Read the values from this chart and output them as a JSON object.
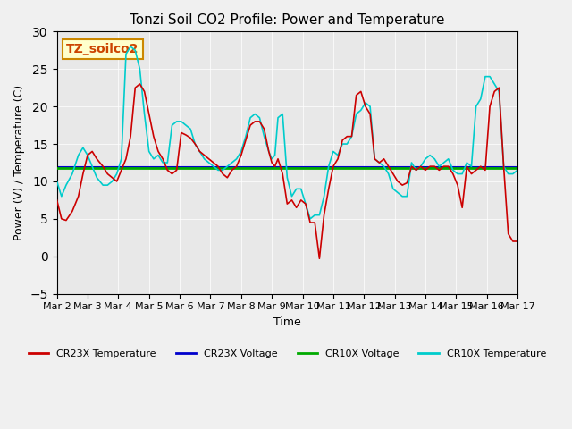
{
  "title": "Tonzi Soil CO2 Profile: Power and Temperature",
  "xlabel": "Time",
  "ylabel": "Power (V) / Temperature (C)",
  "ylim": [
    -5,
    30
  ],
  "xlim": [
    0,
    15
  ],
  "background_color": "#f0f0f0",
  "plot_bg_color": "#e8e8e8",
  "annotation_text": "TZ_soilco2",
  "annotation_bg": "#ffffcc",
  "annotation_border": "#cc8800",
  "yticks": [
    -5,
    0,
    5,
    10,
    15,
    20,
    25,
    30
  ],
  "xtick_labels": [
    "Mar 2",
    "Mar 3",
    "Mar 4",
    "Mar 5",
    "Mar 6",
    "Mar 7",
    "Mar 8",
    "Mar 9",
    "Mar 10",
    "Mar 11",
    "Mar 12",
    "Mar 13",
    "Mar 14",
    "Mar 15",
    "Mar 16",
    "Mar 17"
  ],
  "cr10x_voltage_value": 11.8,
  "cr23x_voltage_value": 11.85,
  "legend_entries": [
    "CR23X Temperature",
    "CR23X Voltage",
    "CR10X Voltage",
    "CR10X Temperature"
  ],
  "legend_colors": [
    "#cc0000",
    "#0000cc",
    "#00aa00",
    "#00cccc"
  ],
  "cr23x_temp_color": "#cc0000",
  "cr10x_temp_color": "#00cccc",
  "cr23x_volt_color": "#0000cc",
  "cr10x_volt_color": "#00aa00",
  "cr23x_temp_x": [
    0,
    0.15,
    0.3,
    0.5,
    0.7,
    0.85,
    1.0,
    1.15,
    1.3,
    1.5,
    1.65,
    1.8,
    1.95,
    2.1,
    2.25,
    2.4,
    2.55,
    2.7,
    2.85,
    3.0,
    3.15,
    3.3,
    3.45,
    3.6,
    3.75,
    3.9,
    4.05,
    4.2,
    4.35,
    4.5,
    4.65,
    4.8,
    4.95,
    5.1,
    5.25,
    5.4,
    5.55,
    5.7,
    5.85,
    6.0,
    6.15,
    6.3,
    6.45,
    6.6,
    6.75,
    6.9,
    7.0,
    7.1,
    7.2,
    7.35,
    7.5,
    7.65,
    7.8,
    7.95,
    8.1,
    8.25,
    8.4,
    8.55,
    8.7,
    8.85,
    9.0,
    9.15,
    9.3,
    9.45,
    9.6,
    9.75,
    9.9,
    10.05,
    10.2,
    10.35,
    10.5,
    10.65,
    10.8,
    10.95,
    11.1,
    11.25,
    11.4,
    11.55,
    11.7,
    11.85,
    12.0,
    12.15,
    12.3,
    12.45,
    12.6,
    12.75,
    12.9,
    13.05,
    13.2,
    13.35,
    13.5,
    13.65,
    13.8,
    13.95,
    14.1,
    14.25,
    14.4,
    14.55,
    14.7,
    14.85,
    15.0
  ],
  "cr23x_temp_y": [
    7.5,
    5.0,
    4.8,
    6.0,
    8.0,
    11.0,
    13.5,
    14.0,
    13.0,
    12.0,
    11.0,
    10.5,
    10.0,
    11.5,
    13.0,
    16.0,
    22.5,
    23.0,
    22.0,
    19.0,
    16.0,
    14.0,
    13.0,
    11.5,
    11.0,
    11.5,
    16.5,
    16.2,
    15.8,
    15.0,
    14.0,
    13.5,
    13.0,
    12.5,
    12.0,
    11.0,
    10.5,
    11.5,
    12.0,
    13.5,
    15.5,
    17.5,
    18.0,
    18.0,
    17.0,
    14.0,
    12.5,
    12.0,
    13.0,
    11.0,
    7.0,
    7.5,
    6.5,
    7.5,
    7.0,
    4.5,
    4.5,
    -0.3,
    5.5,
    9.0,
    12.0,
    13.0,
    15.5,
    16.0,
    16.0,
    21.5,
    22.0,
    20.0,
    19.0,
    13.0,
    12.5,
    13.0,
    12.0,
    11.0,
    10.0,
    9.5,
    9.8,
    12.0,
    11.5,
    12.0,
    11.5,
    12.0,
    12.0,
    11.5,
    12.0,
    12.0,
    11.0,
    9.5,
    6.5,
    12.0,
    11.0,
    11.5,
    12.0,
    11.5,
    20.0,
    22.0,
    22.5,
    12.0,
    3.0,
    2.0,
    2.0
  ],
  "cr10x_temp_x": [
    0,
    0.15,
    0.3,
    0.5,
    0.7,
    0.85,
    1.0,
    1.15,
    1.3,
    1.5,
    1.65,
    1.8,
    1.95,
    2.1,
    2.25,
    2.4,
    2.55,
    2.7,
    2.85,
    3.0,
    3.15,
    3.3,
    3.45,
    3.6,
    3.75,
    3.9,
    4.05,
    4.2,
    4.35,
    4.5,
    4.65,
    4.8,
    4.95,
    5.1,
    5.25,
    5.4,
    5.55,
    5.7,
    5.85,
    6.0,
    6.15,
    6.3,
    6.45,
    6.6,
    6.75,
    6.9,
    7.0,
    7.1,
    7.2,
    7.35,
    7.5,
    7.65,
    7.8,
    7.95,
    8.1,
    8.25,
    8.4,
    8.55,
    8.7,
    8.85,
    9.0,
    9.15,
    9.3,
    9.45,
    9.6,
    9.75,
    9.9,
    10.05,
    10.2,
    10.35,
    10.5,
    10.65,
    10.8,
    10.95,
    11.1,
    11.25,
    11.4,
    11.55,
    11.7,
    11.85,
    12.0,
    12.15,
    12.3,
    12.45,
    12.6,
    12.75,
    12.9,
    13.05,
    13.2,
    13.35,
    13.5,
    13.65,
    13.8,
    13.95,
    14.1,
    14.25,
    14.4,
    14.55,
    14.7,
    14.85,
    15.0
  ],
  "cr10x_temp_y": [
    10.0,
    8.0,
    9.5,
    11.0,
    13.5,
    14.5,
    13.5,
    12.0,
    10.5,
    9.5,
    9.5,
    10.0,
    11.0,
    13.0,
    27.0,
    28.0,
    27.5,
    25.0,
    19.0,
    14.0,
    13.0,
    13.5,
    12.5,
    12.5,
    17.5,
    18.0,
    18.0,
    17.5,
    17.0,
    15.0,
    14.0,
    13.0,
    12.5,
    12.0,
    11.5,
    11.5,
    12.0,
    12.5,
    13.0,
    14.0,
    16.0,
    18.5,
    19.0,
    18.5,
    16.0,
    14.0,
    13.0,
    13.5,
    18.5,
    19.0,
    10.5,
    8.0,
    9.0,
    9.0,
    7.0,
    5.0,
    5.5,
    5.5,
    8.0,
    12.0,
    14.0,
    13.5,
    15.0,
    15.0,
    16.0,
    19.0,
    19.5,
    20.5,
    20.0,
    13.0,
    12.5,
    12.0,
    11.0,
    9.0,
    8.5,
    8.0,
    8.0,
    12.5,
    11.5,
    12.0,
    13.0,
    13.5,
    13.0,
    12.0,
    12.5,
    13.0,
    11.5,
    11.0,
    11.0,
    12.5,
    12.0,
    20.0,
    21.0,
    24.0,
    24.0,
    23.0,
    22.0,
    12.0,
    11.0,
    11.0,
    11.5
  ]
}
